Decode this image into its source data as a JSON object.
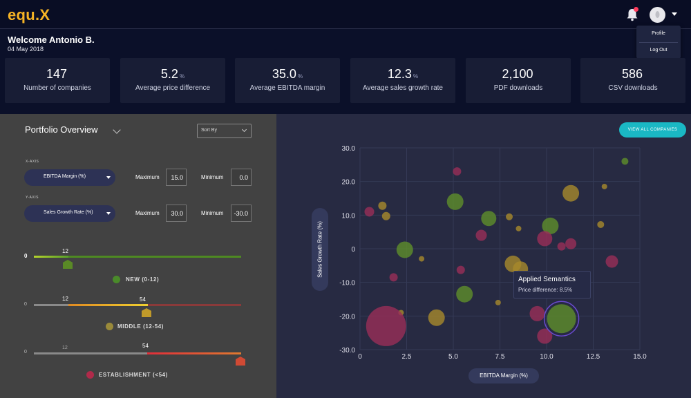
{
  "brand": {
    "logo": "equ.X"
  },
  "header": {
    "welcome": "Welcome Antonio B.",
    "date": "04 May 2018"
  },
  "user_menu": {
    "profile": "Profile",
    "logout": "Log Out"
  },
  "kpis": [
    {
      "value": "147",
      "unit": "",
      "label": "Number of companies"
    },
    {
      "value": "5.2",
      "unit": "%",
      "label": "Average price difference"
    },
    {
      "value": "35.0",
      "unit": "%",
      "label": "Average EBITDA margin"
    },
    {
      "value": "12.3",
      "unit": "%",
      "label": "Average sales growth rate"
    },
    {
      "value": "2,100",
      "unit": "",
      "label": "PDF downloads"
    },
    {
      "value": "586",
      "unit": "",
      "label": "CSV downloads"
    }
  ],
  "portfolio": {
    "title": "Portfolio  Overview",
    "sort_label": "Sort By",
    "x_axis": {
      "caption": "X-AXIS",
      "selected": "EBITDA Margin (%)",
      "max_label": "Maximum",
      "max": "15.0",
      "min_label": "Minimum",
      "min": "0.0"
    },
    "y_axis": {
      "caption": "Y-AXIS",
      "selected": "Sales Growth Rate (%)",
      "max_label": "Maximum",
      "max": "30.0",
      "min_label": "Minimum",
      "min": "-30.0"
    }
  },
  "stages": {
    "new": {
      "label": "NEW (0-12)",
      "start": "0",
      "tick": "12"
    },
    "middle": {
      "label": "MIDDLE (12-54)",
      "start": "0",
      "tick_a": "12",
      "tick_b": "54"
    },
    "establishment": {
      "label": "ESTABLISHMENT (<54)",
      "start": "0",
      "tick_a": "12",
      "tick_b": "54"
    }
  },
  "actions": {
    "view_all": "VIEW ALL COMPANIES"
  },
  "tooltip": {
    "title": "Applied Semantics",
    "text": "Price difference: 8.5%"
  },
  "colors": {
    "accent": "#1ab8c4",
    "logo": "#f5b325",
    "new": "#6a9a2a",
    "middle": "#b8982e",
    "establishment": "#a0305a"
  },
  "chart_data": {
    "type": "scatter",
    "xlabel": "EBITDA Margin (%)",
    "ylabel": "Sales Growth Rate (%)",
    "xlim": [
      0,
      15
    ],
    "ylim": [
      -30,
      30
    ],
    "xticks": [
      "0",
      "2.5",
      "5.0",
      "7.5",
      "10.0",
      "12.5",
      "15.0"
    ],
    "yticks": [
      "30.0",
      "20.0",
      "10.0",
      "0",
      "-10.0",
      "-20.0",
      "-30.0"
    ],
    "grid": true,
    "series": [
      {
        "name": "NEW (0-12)",
        "color": "#5f8f2a",
        "points": [
          {
            "x": 14.2,
            "y": 26.0,
            "size": 5
          },
          {
            "x": 5.1,
            "y": 14.0,
            "size": 12
          },
          {
            "x": 6.9,
            "y": 9.0,
            "size": 11
          },
          {
            "x": 10.2,
            "y": 6.8,
            "size": 12
          },
          {
            "x": 2.4,
            "y": -0.3,
            "size": 12
          },
          {
            "x": 5.6,
            "y": -13.5,
            "size": 12
          },
          {
            "x": 10.8,
            "y": -20.8,
            "size": 21
          }
        ]
      },
      {
        "name": "MIDDLE (12-54)",
        "color": "#a88a2c",
        "points": [
          {
            "x": 11.3,
            "y": 16.5,
            "size": 12
          },
          {
            "x": 13.1,
            "y": 18.5,
            "size": 4
          },
          {
            "x": 1.2,
            "y": 12.8,
            "size": 6
          },
          {
            "x": 1.4,
            "y": 9.7,
            "size": 6
          },
          {
            "x": 8.0,
            "y": 9.5,
            "size": 5
          },
          {
            "x": 8.5,
            "y": 6.0,
            "size": 4
          },
          {
            "x": 12.9,
            "y": 7.2,
            "size": 5
          },
          {
            "x": 3.3,
            "y": -3.0,
            "size": 4
          },
          {
            "x": 8.2,
            "y": -4.5,
            "size": 12
          },
          {
            "x": 8.6,
            "y": -6.0,
            "size": 11
          },
          {
            "x": 7.4,
            "y": -16.0,
            "size": 4
          },
          {
            "x": 4.1,
            "y": -20.5,
            "size": 12
          },
          {
            "x": 2.2,
            "y": -19.0,
            "size": 4
          }
        ]
      },
      {
        "name": "ESTABLISHMENT (<54)",
        "color": "#9a2e58",
        "points": [
          {
            "x": 5.2,
            "y": 23.0,
            "size": 6
          },
          {
            "x": 0.5,
            "y": 11.0,
            "size": 7
          },
          {
            "x": 6.5,
            "y": 4.0,
            "size": 8
          },
          {
            "x": 9.9,
            "y": 3.0,
            "size": 11
          },
          {
            "x": 10.8,
            "y": 0.7,
            "size": 6
          },
          {
            "x": 11.3,
            "y": 1.5,
            "size": 8
          },
          {
            "x": 13.5,
            "y": -3.8,
            "size": 9
          },
          {
            "x": 5.4,
            "y": -6.3,
            "size": 6
          },
          {
            "x": 1.8,
            "y": -8.5,
            "size": 6
          },
          {
            "x": 9.5,
            "y": -19.3,
            "size": 11
          },
          {
            "x": 9.9,
            "y": -26.0,
            "size": 11
          },
          {
            "x": 1.4,
            "y": -23.0,
            "size": 29
          }
        ]
      }
    ],
    "highlight": {
      "x": 10.8,
      "y": -20.8
    }
  }
}
